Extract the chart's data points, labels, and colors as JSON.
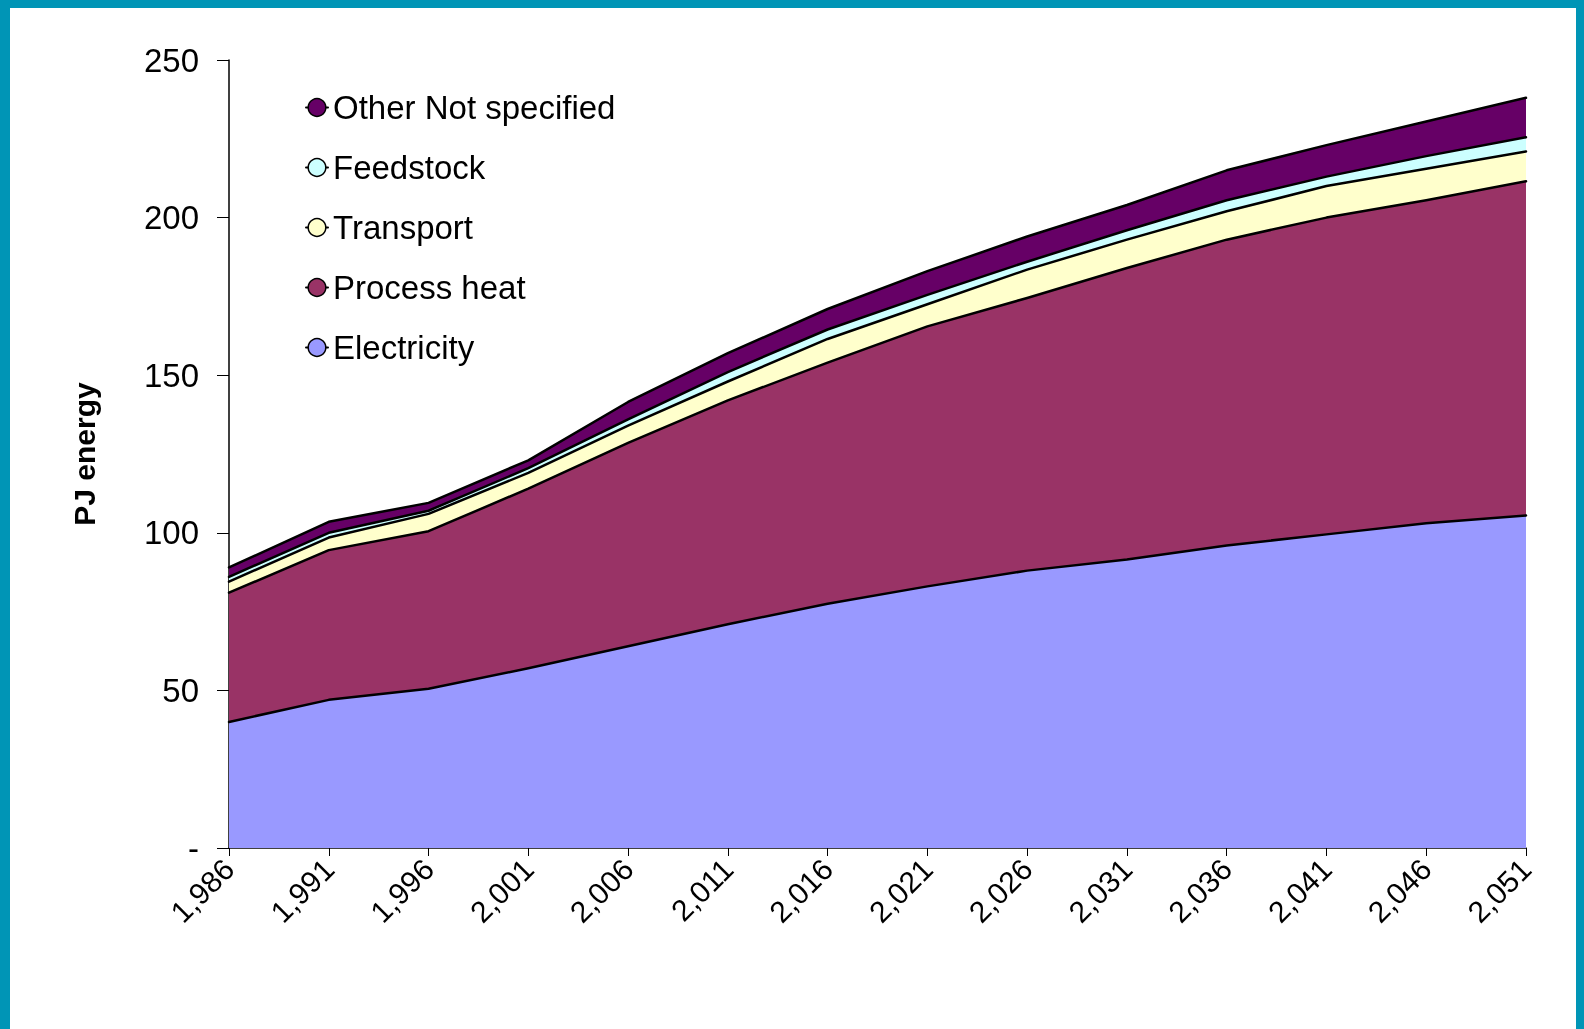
{
  "chart_data": {
    "type": "area",
    "stacked": true,
    "ylabel": "PJ energy",
    "categories": [
      "1,986",
      "1,991",
      "1,996",
      "2,001",
      "2,006",
      "2,011",
      "2,016",
      "2,021",
      "2,026",
      "2,031",
      "2,036",
      "2,041",
      "2,046",
      "2,051"
    ],
    "series": [
      {
        "name": "Electricity",
        "color": "#9999ff",
        "values": [
          40,
          47,
          50.5,
          57,
          64,
          71,
          77.5,
          83,
          88,
          91.5,
          96,
          99.5,
          103,
          105.5
        ]
      },
      {
        "name": "Process heat",
        "color": "#993366",
        "values": [
          41,
          47.5,
          50,
          57,
          64.5,
          71,
          76.5,
          82.5,
          86.5,
          92.5,
          97,
          100.5,
          102.5,
          106
        ]
      },
      {
        "name": "Transport",
        "color": "#ffffcc",
        "values": [
          3.5,
          4,
          5.5,
          5,
          5.5,
          6,
          7.5,
          7,
          9,
          9,
          9,
          10,
          10,
          9.5
        ]
      },
      {
        "name": "Feedstock",
        "color": "#ccffff",
        "values": [
          1.5,
          1.5,
          1,
          1.5,
          2,
          3,
          3,
          3,
          2.5,
          3,
          3.5,
          3,
          4,
          4.5
        ]
      },
      {
        "name": "Other Not specified",
        "color": "#660066",
        "values": [
          3,
          3.5,
          2.5,
          2.5,
          5.5,
          6,
          6.5,
          7.5,
          8,
          8,
          9.5,
          10,
          11,
          12.5
        ]
      }
    ],
    "ylim": [
      0,
      250
    ],
    "yticks": [
      {
        "value": 0,
        "label": "-"
      },
      50,
      100,
      150,
      200,
      250
    ],
    "grid": false,
    "legend": "top left",
    "marker": "none",
    "line_style": "solid"
  }
}
